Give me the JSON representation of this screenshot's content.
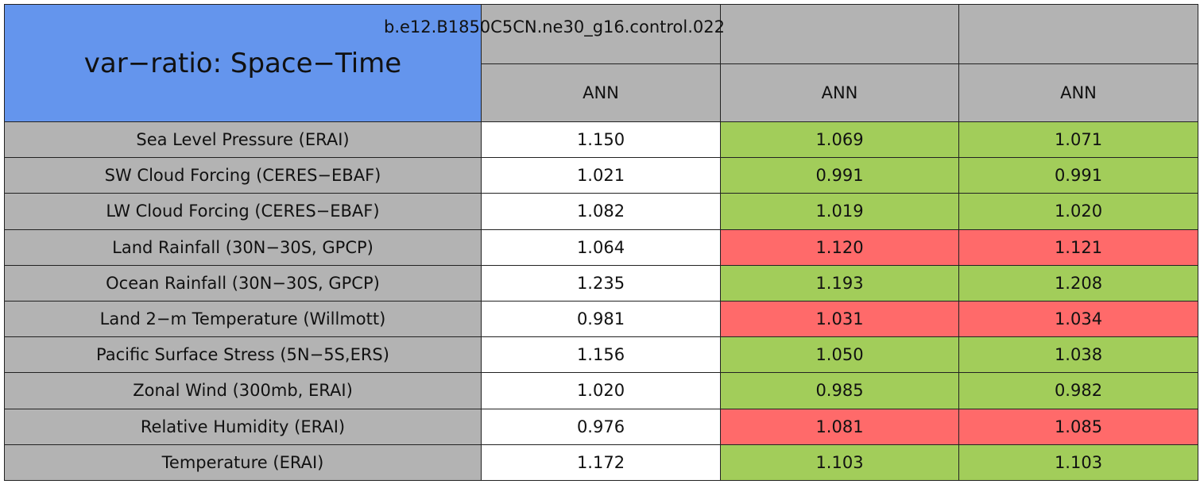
{
  "table": {
    "title": "var−ratio: Space−Time",
    "case_header": "b.e12.B1850C5CN.ne30_g16.control.022",
    "columns": [
      "ANN",
      "ANN",
      "ANN"
    ],
    "title_color": "#6495ed",
    "header_color": "#b3b3b3",
    "rows": [
      {
        "label": "Sea Level Pressure (ERAI)",
        "values": [
          "1.150",
          "1.069",
          "1.071"
        ],
        "colors": [
          "#ffffff",
          "#a2cd5a",
          "#a2cd5a"
        ]
      },
      {
        "label": "SW Cloud Forcing (CERES−EBAF)",
        "values": [
          "1.021",
          "0.991",
          "0.991"
        ],
        "colors": [
          "#ffffff",
          "#a2cd5a",
          "#a2cd5a"
        ]
      },
      {
        "label": "LW Cloud Forcing (CERES−EBAF)",
        "values": [
          "1.082",
          "1.019",
          "1.020"
        ],
        "colors": [
          "#ffffff",
          "#a2cd5a",
          "#a2cd5a"
        ]
      },
      {
        "label": "Land Rainfall (30N−30S, GPCP)",
        "values": [
          "1.064",
          "1.120",
          "1.121"
        ],
        "colors": [
          "#ffffff",
          "#ff6a6a",
          "#ff6a6a"
        ]
      },
      {
        "label": "Ocean Rainfall (30N−30S, GPCP)",
        "values": [
          "1.235",
          "1.193",
          "1.208"
        ],
        "colors": [
          "#ffffff",
          "#a2cd5a",
          "#a2cd5a"
        ]
      },
      {
        "label": "Land 2−m Temperature (Willmott)",
        "values": [
          "0.981",
          "1.031",
          "1.034"
        ],
        "colors": [
          "#ffffff",
          "#ff6a6a",
          "#ff6a6a"
        ]
      },
      {
        "label": "Pacific Surface Stress (5N−5S,ERS)",
        "values": [
          "1.156",
          "1.050",
          "1.038"
        ],
        "colors": [
          "#ffffff",
          "#a2cd5a",
          "#a2cd5a"
        ]
      },
      {
        "label": "Zonal Wind (300mb, ERAI)",
        "values": [
          "1.020",
          "0.985",
          "0.982"
        ],
        "colors": [
          "#ffffff",
          "#a2cd5a",
          "#a2cd5a"
        ]
      },
      {
        "label": "Relative Humidity (ERAI)",
        "values": [
          "0.976",
          "1.081",
          "1.085"
        ],
        "colors": [
          "#ffffff",
          "#ff6a6a",
          "#ff6a6a"
        ]
      },
      {
        "label": "Temperature (ERAI)",
        "values": [
          "1.172",
          "1.103",
          "1.103"
        ],
        "colors": [
          "#ffffff",
          "#a2cd5a",
          "#a2cd5a"
        ]
      }
    ]
  }
}
